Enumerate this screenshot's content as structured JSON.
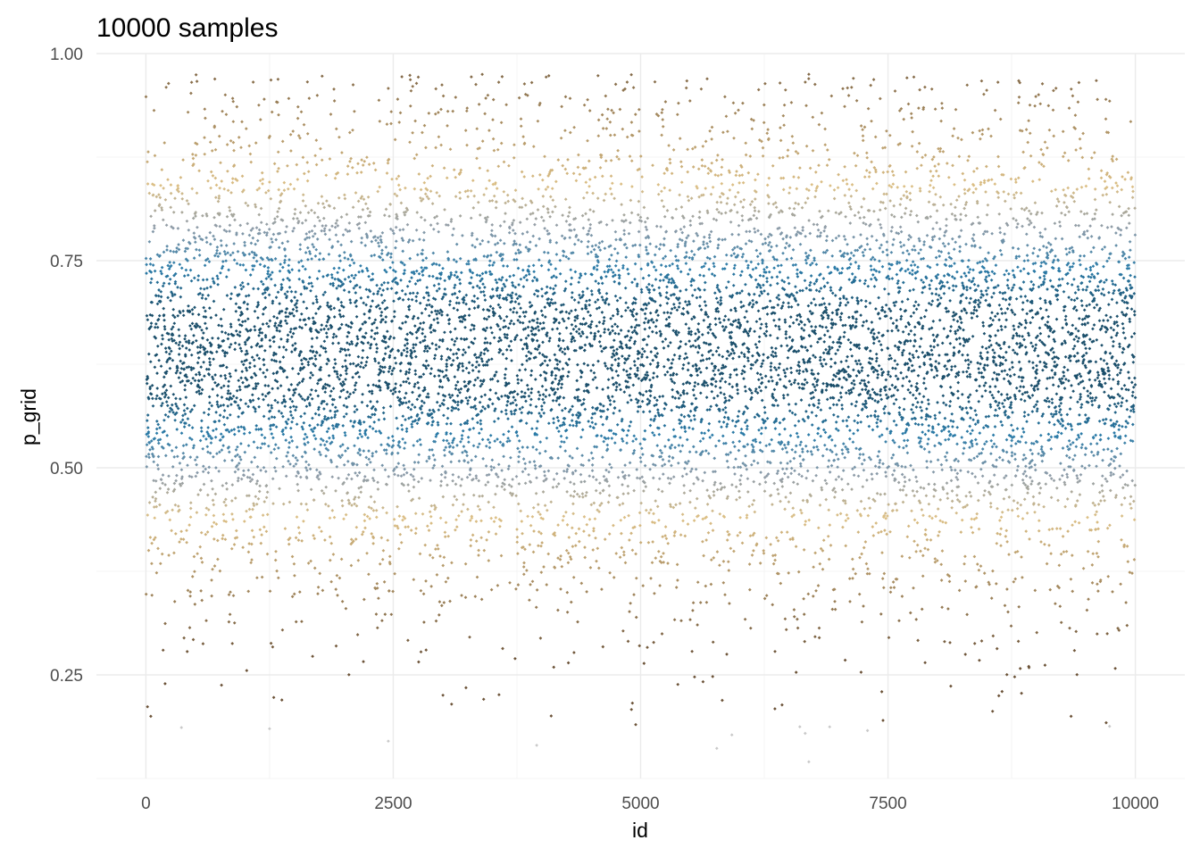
{
  "chart_data": {
    "type": "scatter",
    "title": "10000 samples",
    "xlabel": "id",
    "ylabel": "p_grid",
    "xlim": [
      -500,
      10500
    ],
    "ylim": [
      0.125,
      1.0
    ],
    "x_ticks": [
      {
        "value": 0,
        "label": "0"
      },
      {
        "value": 2500,
        "label": "2500"
      },
      {
        "value": 5000,
        "label": "5000"
      },
      {
        "value": 7500,
        "label": "7500"
      },
      {
        "value": 10000,
        "label": "10000"
      }
    ],
    "y_ticks": [
      {
        "value": 0.25,
        "label": "0.25"
      },
      {
        "value": 0.5,
        "label": "0.50"
      },
      {
        "value": 0.75,
        "label": "0.75"
      },
      {
        "value": 1.0,
        "label": "1.00"
      }
    ],
    "grid": true,
    "legend": "none",
    "n_points": 10000,
    "distribution": {
      "center": 0.64,
      "spread": 0.14
    },
    "points": [
      {
        "x": 1250,
        "y": 0.185
      },
      {
        "x": 2450,
        "y": 0.17
      },
      {
        "x": 3950,
        "y": 0.165
      },
      {
        "x": 6700,
        "y": 0.145
      },
      {
        "x": 9350,
        "y": 0.2
      },
      {
        "x": 7450,
        "y": 0.195
      },
      {
        "x": 50,
        "y": 0.2
      },
      {
        "x": 4950,
        "y": 0.19
      },
      {
        "x": 3900,
        "y": 0.965
      },
      {
        "x": 6700,
        "y": 0.975
      },
      {
        "x": 7150,
        "y": 0.97
      },
      {
        "x": 8300,
        "y": 0.962
      },
      {
        "x": 2450,
        "y": 0.958
      },
      {
        "x": 1900,
        "y": 0.957
      }
    ],
    "color_scale": {
      "low": "#6b5237",
      "mid_low": "#dcbf85",
      "mid": "#8f9ca8",
      "high": "#2a7ba8",
      "peak": "#1b4f6b",
      "extreme": "#c9c9c9"
    }
  }
}
